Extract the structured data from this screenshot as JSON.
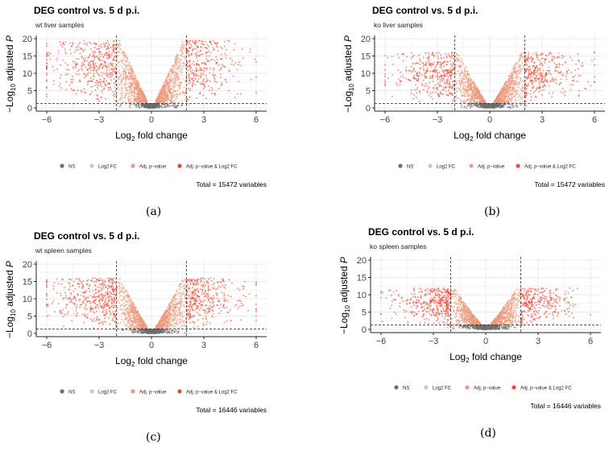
{
  "colors": {
    "ns": "#6e6e6e",
    "log2fc": "#c8c8c8",
    "adjp": "#eb9a7c",
    "both": "#ee4a33",
    "grid": "#ebebeb",
    "axis": "#222222"
  },
  "axis_labels": {
    "y_main": "−Log",
    "y_sub": "10",
    "y_rest": " adjusted ",
    "y_italic": "P",
    "x_main": "Log",
    "x_sub": "2",
    "x_rest": " fold change"
  },
  "legend": [
    "NS",
    "Log2 FC",
    "Adj. p−value",
    "Adj. p−value & Log2 FC"
  ],
  "chart_data": [
    {
      "id": "a",
      "type": "scatter",
      "caption": "(a)",
      "title": "DEG control vs. 5 d p.i.",
      "subtitle": "wt liver samples",
      "xlim": [
        -6.6,
        6.6
      ],
      "ylim": [
        -0.5,
        20.5
      ],
      "xticks": [
        -6,
        -3,
        0,
        3,
        6
      ],
      "yticks": [
        0,
        5,
        10,
        15,
        20
      ],
      "fc_cutoff": 2,
      "p_cutoff": 1.3,
      "max_y": 19.5,
      "total": "Total = 15472 variables",
      "seed": 11,
      "skew_left": 1.4
    },
    {
      "id": "b",
      "type": "scatter",
      "caption": "(b)",
      "title": "DEG control vs. 5 d p.i.",
      "subtitle": "ko liver samples",
      "xlim": [
        -6.6,
        6.6
      ],
      "ylim": [
        -0.5,
        20.5
      ],
      "xticks": [
        -6,
        -3,
        0,
        3,
        6
      ],
      "yticks": [
        0,
        5,
        10,
        15,
        20
      ],
      "fc_cutoff": 2,
      "p_cutoff": 1.3,
      "max_y": 16,
      "total": "Total = 15472 variables",
      "seed": 23,
      "skew_left": 1.1
    },
    {
      "id": "c",
      "type": "scatter",
      "caption": "(c)",
      "title": "DEG control vs. 5 d p.i.",
      "subtitle": "wt spleen samples",
      "xlim": [
        -6.6,
        6.6
      ],
      "ylim": [
        -0.5,
        20.5
      ],
      "xticks": [
        -6,
        -3,
        0,
        3,
        6
      ],
      "yticks": [
        0,
        5,
        10,
        15,
        20
      ],
      "fc_cutoff": 2,
      "p_cutoff": 1.3,
      "max_y": 16,
      "total": "Total = 16446 variables",
      "seed": 37,
      "skew_left": 1.3
    },
    {
      "id": "d",
      "type": "scatter",
      "caption": "(d)",
      "title": "DEG control vs. 5 d p.i.",
      "subtitle": "ko spleen samples",
      "xlim": [
        -6.6,
        6.6
      ],
      "ylim": [
        -0.5,
        20.5
      ],
      "xticks": [
        -6,
        -3,
        0,
        3,
        6
      ],
      "yticks": [
        0,
        5,
        10,
        15,
        20
      ],
      "fc_cutoff": 2,
      "p_cutoff": 1.3,
      "max_y": 12,
      "total": "Total = 16446 variables",
      "seed": 53,
      "skew_left": 1.0
    }
  ]
}
